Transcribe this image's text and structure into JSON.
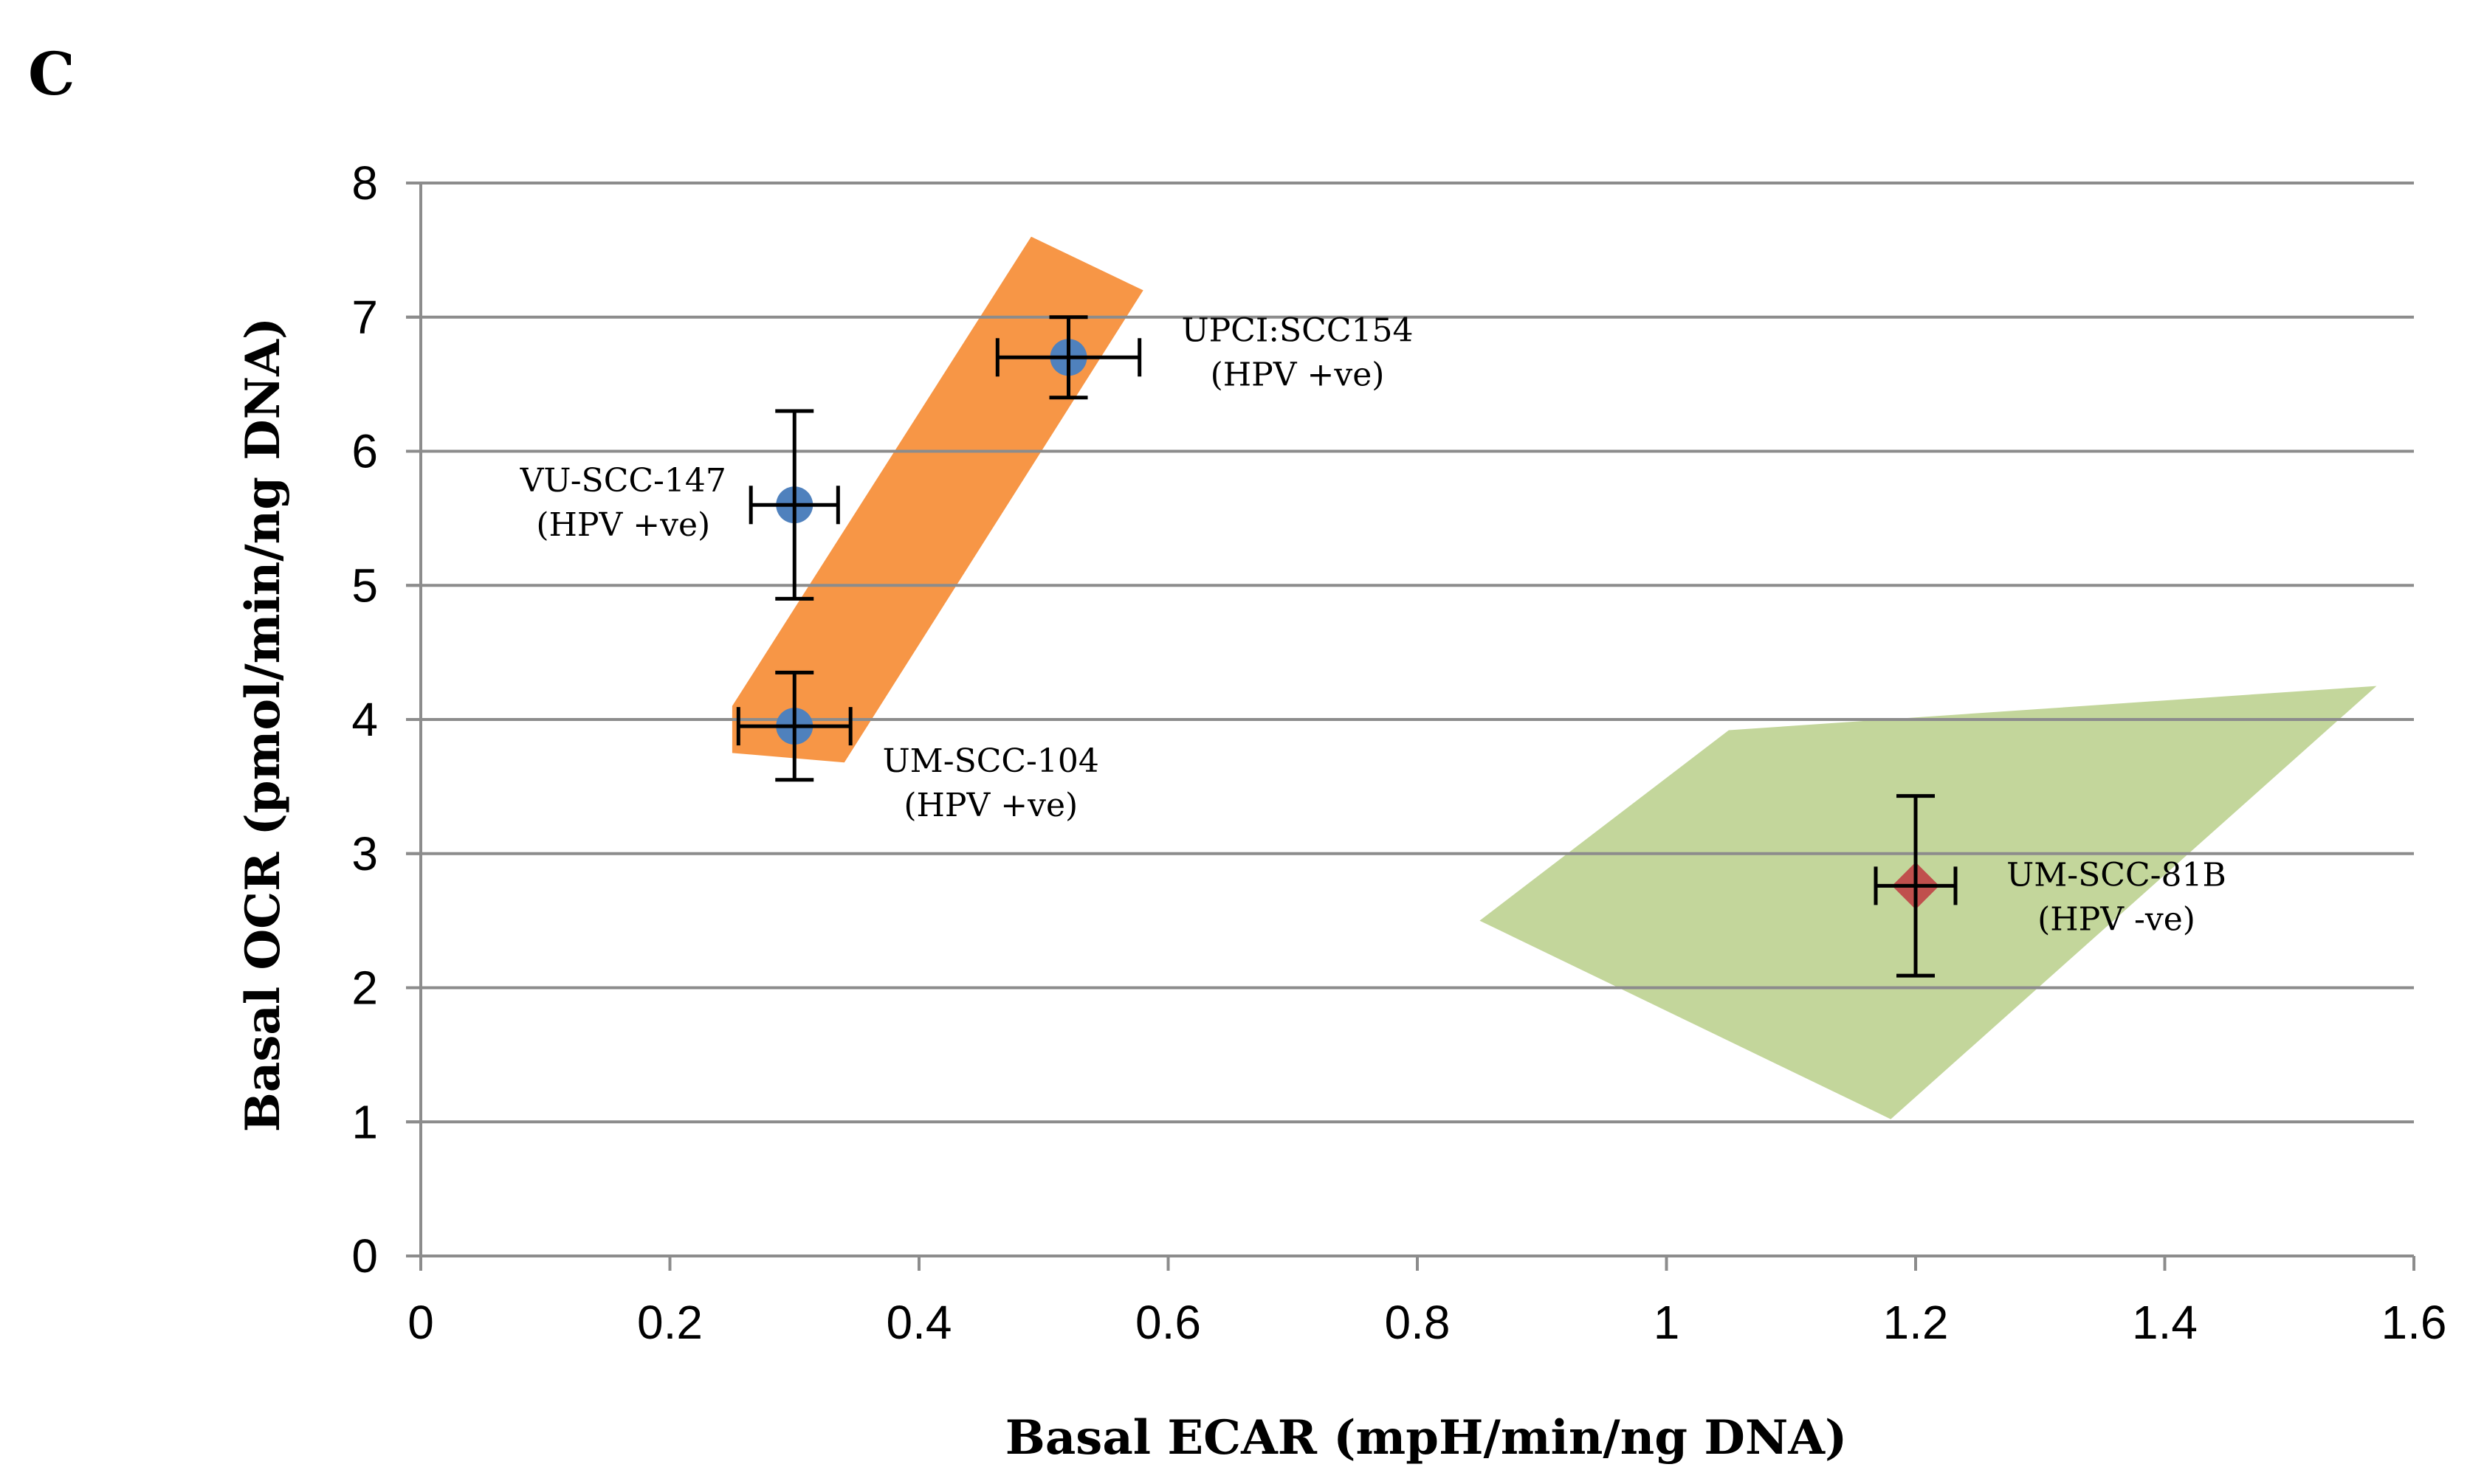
{
  "panel_label": "C",
  "chart_data": {
    "type": "scatter",
    "xlabel": "Basal ECAR (mpH/min/ng DNA)",
    "ylabel": "Basal OCR (pmol/min/ng DNA)",
    "xlim": [
      0,
      1.6
    ],
    "ylim": [
      0,
      8
    ],
    "x_ticks": [
      0,
      0.2,
      0.4,
      0.6,
      0.8,
      1,
      1.2,
      1.4,
      1.6
    ],
    "x_tick_labels": [
      "0",
      "0.2",
      "0.4",
      "0.6",
      "0.8",
      "1",
      "1.2",
      "1.4",
      "1.6"
    ],
    "y_ticks": [
      0,
      1,
      2,
      3,
      4,
      5,
      6,
      7,
      8
    ],
    "y_tick_labels": [
      "0",
      "1",
      "2",
      "3",
      "4",
      "5",
      "6",
      "7",
      "8"
    ],
    "grid": "horizontal",
    "regions": [
      {
        "name": "HPV-positive region",
        "color": "#f79646",
        "polygon": [
          [
            0.25,
            4.1
          ],
          [
            0.49,
            7.6
          ],
          [
            0.58,
            7.2
          ],
          [
            0.34,
            3.68
          ],
          [
            0.25,
            3.75
          ]
        ]
      },
      {
        "name": "HPV-negative region",
        "color": "#c3d69b",
        "polygon": [
          [
            0.85,
            2.5
          ],
          [
            1.05,
            3.92
          ],
          [
            1.57,
            4.25
          ],
          [
            1.18,
            1.02
          ]
        ]
      }
    ],
    "series": [
      {
        "name": "HPV +ve",
        "marker": "circle",
        "color": "#4f81bd",
        "points": [
          {
            "id": "upci-scc154",
            "x": 0.52,
            "y": 6.7,
            "x_err": 0.057,
            "y_err": 0.3,
            "label_line1": "UPCI:SCC154",
            "label_line2": "(HPV +ve)"
          },
          {
            "id": "vu-scc-147",
            "x": 0.3,
            "y": 5.6,
            "x_err": 0.035,
            "y_err": 0.7,
            "label_line1": "VU-SCC-147",
            "label_line2": "(HPV +ve)"
          },
          {
            "id": "um-scc-104",
            "x": 0.3,
            "y": 3.95,
            "x_err": 0.045,
            "y_err": 0.4,
            "label_line1": "UM-SCC-104",
            "label_line2": "(HPV +ve)"
          }
        ]
      },
      {
        "name": "HPV -ve",
        "marker": "diamond",
        "color": "#c0504d",
        "points": [
          {
            "id": "um-scc-81b",
            "x": 1.2,
            "y": 2.76,
            "x_err": 0.032,
            "y_err": 0.67,
            "label_line1": "UM-SCC-81B",
            "label_line2": "(HPV -ve)"
          }
        ]
      }
    ]
  }
}
